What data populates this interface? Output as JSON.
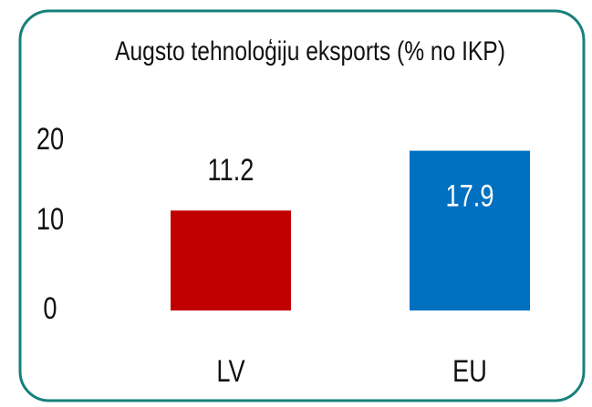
{
  "chart_data": {
    "type": "bar",
    "title": "Augsto tehnoloģiju eksports (% no IKP)",
    "categories": [
      "LV",
      "EU"
    ],
    "values": [
      11.2,
      17.9
    ],
    "colors": [
      "#c00000",
      "#0070c0"
    ],
    "ylim": [
      0,
      20
    ],
    "yticks": [
      0,
      10,
      20
    ],
    "grid": false
  }
}
